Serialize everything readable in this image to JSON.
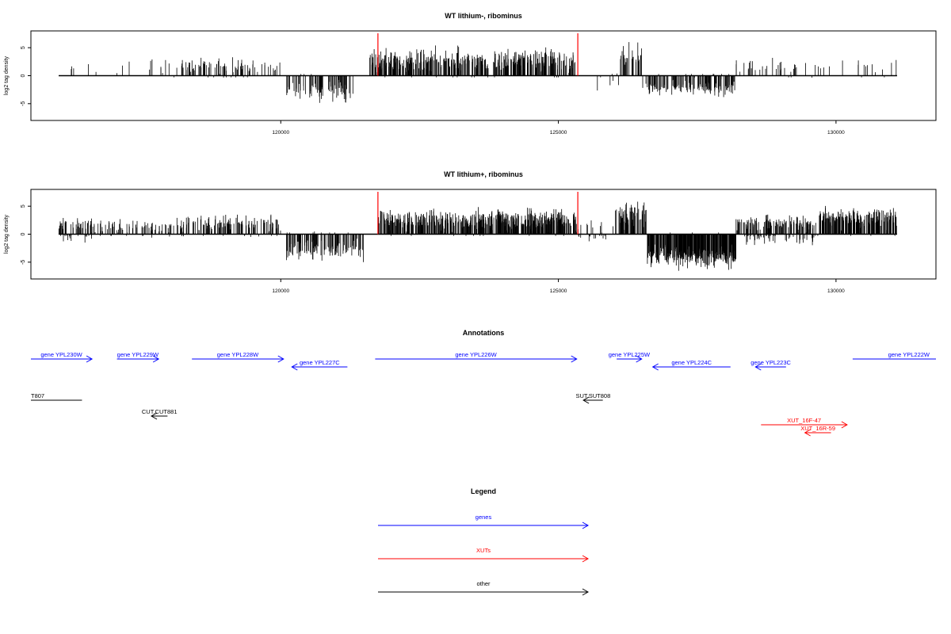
{
  "chart_data": [
    {
      "type": "bar",
      "title": "WT lithium-, ribominus",
      "ylabel": "log2 tag density",
      "xlim": [
        115500,
        131800
      ],
      "ylim": [
        -8,
        8
      ],
      "yticks": [
        -5,
        0,
        5
      ],
      "xticks": [
        120000,
        125000,
        130000
      ],
      "markers": [
        121750,
        125350
      ],
      "marker_color": "#ff0000",
      "profile": [
        {
          "start": 116000,
          "end": 118200,
          "density": 0.12,
          "pos_mean": 1.6,
          "pos_var": 1.2,
          "neg_mean": 0.2,
          "neg_var": 0.3
        },
        {
          "start": 118200,
          "end": 119500,
          "density": 0.8,
          "pos_mean": 1.8,
          "pos_var": 1.0,
          "neg_mean": 0.1,
          "neg_var": 0.2
        },
        {
          "start": 119500,
          "end": 120000,
          "density": 0.35,
          "pos_mean": 1.5,
          "pos_var": 0.8,
          "neg_mean": 0.1,
          "neg_var": 0.2
        },
        {
          "start": 120100,
          "end": 121300,
          "density": 1.0,
          "pos_mean": 0.1,
          "pos_var": 0.2,
          "neg_mean": 2.8,
          "neg_var": 1.4
        },
        {
          "start": 121600,
          "end": 125300,
          "density": 1.6,
          "pos_mean": 2.7,
          "pos_var": 1.5,
          "neg_mean": 0.05,
          "neg_var": 0.1
        },
        {
          "start": 125600,
          "end": 126100,
          "density": 0.2,
          "pos_mean": 0.3,
          "pos_var": 0.4,
          "neg_mean": 1.8,
          "neg_var": 1.0
        },
        {
          "start": 126100,
          "end": 126500,
          "density": 1.0,
          "pos_mean": 3.0,
          "pos_var": 1.8,
          "neg_mean": 0.1,
          "neg_var": 0.2
        },
        {
          "start": 126500,
          "end": 128200,
          "density": 1.2,
          "pos_mean": 0.1,
          "pos_var": 0.2,
          "neg_mean": 2.3,
          "neg_var": 1.0
        },
        {
          "start": 128200,
          "end": 131100,
          "density": 0.25,
          "pos_mean": 1.8,
          "pos_var": 1.0,
          "neg_mean": 0.1,
          "neg_var": 0.2
        }
      ]
    },
    {
      "type": "bar",
      "title": "WT lithium+, ribominus",
      "ylabel": "log2 tag density",
      "xlim": [
        115500,
        131800
      ],
      "ylim": [
        -8,
        8
      ],
      "yticks": [
        -5,
        0,
        5
      ],
      "xticks": [
        120000,
        125000,
        130000
      ],
      "markers": [
        121750,
        125350
      ],
      "marker_color": "#ff0000",
      "profile": [
        {
          "start": 116000,
          "end": 116600,
          "density": 1.3,
          "pos_mean": 1.8,
          "pos_var": 1.0,
          "neg_mean": 0.6,
          "neg_var": 0.8
        },
        {
          "start": 116600,
          "end": 118200,
          "density": 0.7,
          "pos_mean": 1.5,
          "pos_var": 0.9,
          "neg_mean": 0.2,
          "neg_var": 0.4
        },
        {
          "start": 118200,
          "end": 120000,
          "density": 1.0,
          "pos_mean": 1.9,
          "pos_var": 1.0,
          "neg_mean": 0.2,
          "neg_var": 0.4
        },
        {
          "start": 120100,
          "end": 121500,
          "density": 1.3,
          "pos_mean": 0.2,
          "pos_var": 0.4,
          "neg_mean": 2.8,
          "neg_var": 1.2
        },
        {
          "start": 121750,
          "end": 125350,
          "density": 2.2,
          "pos_mean": 2.5,
          "pos_var": 1.3,
          "neg_mean": 0.05,
          "neg_var": 0.1
        },
        {
          "start": 125350,
          "end": 126000,
          "density": 0.5,
          "pos_mean": 1.2,
          "pos_var": 1.0,
          "neg_mean": 0.6,
          "neg_var": 0.6
        },
        {
          "start": 126000,
          "end": 126600,
          "density": 1.5,
          "pos_mean": 3.5,
          "pos_var": 1.8,
          "neg_mean": 0.1,
          "neg_var": 0.2
        },
        {
          "start": 126600,
          "end": 128200,
          "density": 3.0,
          "pos_mean": 0.1,
          "pos_var": 0.2,
          "neg_mean": 3.8,
          "neg_var": 1.4
        },
        {
          "start": 128200,
          "end": 129700,
          "density": 1.8,
          "pos_mean": 2.0,
          "pos_var": 1.0,
          "neg_mean": 0.8,
          "neg_var": 0.8
        },
        {
          "start": 129700,
          "end": 131100,
          "density": 2.2,
          "pos_mean": 2.8,
          "pos_var": 1.2,
          "neg_mean": 0.1,
          "neg_var": 0.2
        }
      ]
    }
  ],
  "annotations": {
    "title": "Annotations",
    "genes": [
      {
        "label": "gene YPL230W",
        "start": 115500,
        "end": 116600,
        "dir": "right",
        "row": 0
      },
      {
        "label": "gene YPL229W",
        "start": 117050,
        "end": 117800,
        "dir": "right",
        "row": 0
      },
      {
        "label": "gene YPL228W",
        "start": 118400,
        "end": 120050,
        "dir": "right",
        "row": 0
      },
      {
        "label": "gene YPL227C",
        "start": 120200,
        "end": 121200,
        "dir": "left",
        "row": 1
      },
      {
        "label": "gene YPL226W",
        "start": 121700,
        "end": 125330,
        "dir": "right",
        "row": 0
      },
      {
        "label": "gene YPL225W",
        "start": 126050,
        "end": 126500,
        "dir": "right",
        "row": 0
      },
      {
        "label": "gene YPL224C",
        "start": 126700,
        "end": 128100,
        "dir": "left",
        "row": 1
      },
      {
        "label": "gene YPL223C",
        "start": 128550,
        "end": 129100,
        "dir": "left",
        "row": 1
      },
      {
        "label": "gene YPL222W",
        "start": 130300,
        "end": 131800,
        "dir": "right",
        "row": 0,
        "no_head": true
      }
    ],
    "other": [
      {
        "label": "T807",
        "start": 115500,
        "end": 116420,
        "dir": "none",
        "row": 0
      },
      {
        "label": "SUT.SUT808",
        "start": 125450,
        "end": 125800,
        "dir": "left",
        "row": 0
      },
      {
        "label": "CUT.CUT881",
        "start": 117670,
        "end": 117960,
        "dir": "left",
        "row": 1
      }
    ],
    "xuts": [
      {
        "label": "XUT_16F-47",
        "start": 128650,
        "end": 130200,
        "dir": "right",
        "row": 0
      },
      {
        "label": "XUT_16R-59",
        "start": 129440,
        "end": 129910,
        "dir": "left",
        "row": 1
      }
    ]
  },
  "legend": {
    "title": "Legend",
    "items": [
      {
        "label": "genes",
        "color": "#0000ff"
      },
      {
        "label": "XUTs",
        "color": "#ff0000"
      },
      {
        "label": "other",
        "color": "#000000"
      }
    ]
  },
  "colors": {
    "gene": "#0000ff",
    "xut": "#ff0000",
    "other": "#000000",
    "bars": "#000000",
    "marker": "#ff0000"
  }
}
